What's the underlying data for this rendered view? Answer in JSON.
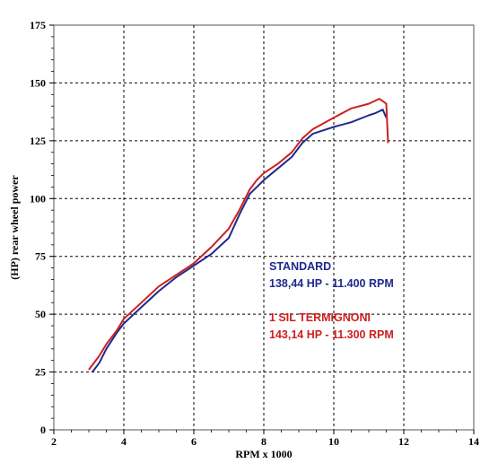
{
  "chart_data": {
    "type": "line",
    "xlabel": "RPM x 1000",
    "ylabel": "(HP) rear wheel power",
    "xlim": [
      2,
      14
    ],
    "ylim": [
      0,
      175
    ],
    "x_ticks": [
      2,
      4,
      6,
      8,
      10,
      12,
      14
    ],
    "y_ticks": [
      0,
      25,
      50,
      75,
      100,
      125,
      150,
      175
    ],
    "x_tick_labels": [
      "2",
      "4",
      "6",
      "8",
      "10",
      "12",
      "14"
    ],
    "y_tick_labels": [
      "0",
      "25",
      "50",
      "75",
      "100",
      "125",
      "150",
      "175"
    ],
    "grid": true,
    "series": [
      {
        "name": "STANDARD",
        "color": "#1f2a8c",
        "x": [
          3.1,
          3.3,
          3.5,
          3.8,
          4.0,
          4.5,
          5.0,
          5.5,
          6.0,
          6.5,
          7.0,
          7.3,
          7.6,
          7.8,
          8.0,
          8.4,
          8.8,
          9.1,
          9.4,
          10.0,
          10.5,
          11.0,
          11.2,
          11.4,
          11.5
        ],
        "y": [
          25,
          29,
          35,
          42,
          46,
          53,
          60,
          66,
          71,
          76,
          83,
          93,
          102,
          105,
          108,
          113,
          118,
          124,
          128,
          131,
          133,
          136,
          137,
          138.44,
          135
        ]
      },
      {
        "name": "1 SIL TERMIGNONI",
        "color": "#cc2020",
        "x": [
          3.0,
          3.3,
          3.5,
          3.8,
          4.0,
          4.5,
          5.0,
          5.5,
          6.0,
          6.5,
          7.0,
          7.3,
          7.6,
          7.8,
          8.0,
          8.4,
          8.8,
          9.1,
          9.4,
          10.0,
          10.5,
          11.0,
          11.3,
          11.5,
          11.55
        ],
        "y": [
          26,
          32,
          37,
          43,
          48,
          55,
          62,
          67,
          72,
          79,
          87,
          95,
          104,
          108,
          111,
          115,
          120,
          126,
          130,
          135,
          139,
          141,
          143.14,
          141,
          124
        ]
      }
    ],
    "annotations": [
      {
        "series": "STANDARD",
        "label": "STANDARD",
        "value_text": "138,44 HP - 11.400 RPM"
      },
      {
        "series": "1 SIL TERMIGNONI",
        "label": "1 SIL TERMIGNONI",
        "value_text": "143,14 HP - 11.300 RPM"
      }
    ]
  }
}
